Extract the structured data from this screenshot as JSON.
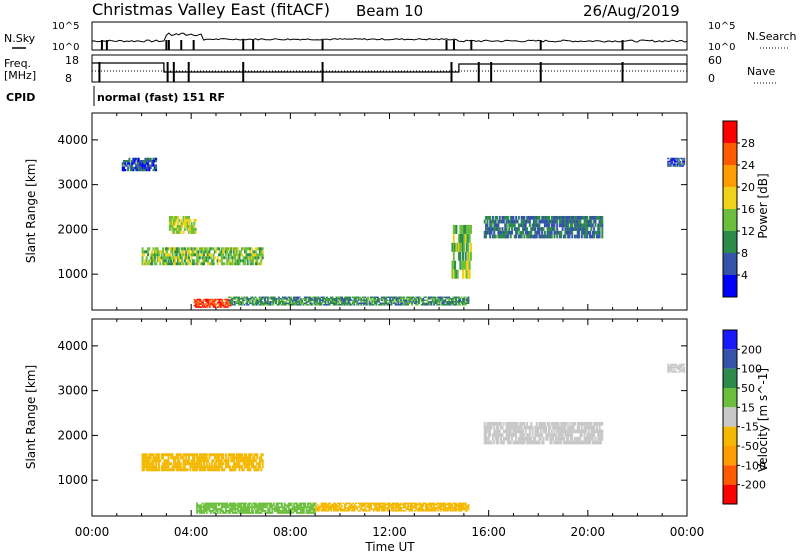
{
  "header": {
    "title": "Christmas Valley East (fitACF)",
    "beam": "Beam 10",
    "date": "26/Aug/2019"
  },
  "top_panels": {
    "nsky_label": "N.Sky",
    "nsearch_label": "N.Search",
    "freq_label_line1": "Freq.",
    "freq_label_line2": "[MHz]",
    "nave_label": "Nave",
    "cpid_label": "CPID",
    "cpid_value": "normal (fast) 151 RF",
    "noise_ticks": [
      "10^5",
      "10^0"
    ],
    "freq_ticks": [
      "18",
      "8"
    ],
    "nave_ticks": [
      "60",
      "0"
    ]
  },
  "colors": {
    "power_scale": [
      "#0000ff",
      "#3553a8",
      "#2c8a4a",
      "#6bbf3c",
      "#f0d21a",
      "#ff9c00",
      "#ff5a00",
      "#ff0000"
    ],
    "velocity_scale": [
      "#ff0000",
      "#ff5a00",
      "#ff9c00",
      "#f5b800",
      "#c8c8c8",
      "#6bbf3c",
      "#2c8a4a",
      "#3553a8",
      "#1a1aff"
    ],
    "ground_scatter": "#b4b4b4"
  },
  "chart_data": [
    {
      "type": "heatmap",
      "title": "",
      "xlabel": "",
      "ylabel": "Slant Range [km]",
      "xlim": [
        "00:00",
        "24:00"
      ],
      "ylim": [
        200,
        4600
      ],
      "yticks": [
        "1000",
        "2000",
        "3000",
        "4000"
      ],
      "colorbar": {
        "label": "Power [dB]",
        "ticks": [
          "4",
          "8",
          "12",
          "16",
          "20",
          "24",
          "28"
        ],
        "range": [
          0,
          30
        ]
      },
      "echo_regions": [
        {
          "start_hour": 3.1,
          "end_hour": 4.2,
          "range_low_km": 1900,
          "range_high_km": 2300,
          "power_db": 16
        },
        {
          "start_hour": 2.0,
          "end_hour": 6.9,
          "range_low_km": 1200,
          "range_high_km": 1600,
          "power_db": 14
        },
        {
          "start_hour": 4.1,
          "end_hour": 5.6,
          "range_low_km": 250,
          "range_high_km": 450,
          "power_db": 28
        },
        {
          "start_hour": 5.5,
          "end_hour": 15.2,
          "range_low_km": 300,
          "range_high_km": 500,
          "power_db": 10
        },
        {
          "start_hour": 14.5,
          "end_hour": 15.3,
          "range_low_km": 900,
          "range_high_km": 2100,
          "power_db": 14
        },
        {
          "start_hour": 15.8,
          "end_hour": 20.6,
          "range_low_km": 1800,
          "range_high_km": 2300,
          "power_db": 8
        },
        {
          "start_hour": 1.2,
          "end_hour": 2.6,
          "range_low_km": 3300,
          "range_high_km": 3600,
          "power_db": 6
        },
        {
          "start_hour": 23.2,
          "end_hour": 23.9,
          "range_low_km": 3400,
          "range_high_km": 3600,
          "power_db": 6
        }
      ]
    },
    {
      "type": "heatmap",
      "title": "",
      "xlabel": "Time UT",
      "ylabel": "Slant Range [km]",
      "xlim": [
        "00:00",
        "24:00"
      ],
      "ylim": [
        200,
        4600
      ],
      "xticks": [
        "00:00",
        "04:00",
        "08:00",
        "12:00",
        "16:00",
        "20:00",
        "00:00"
      ],
      "yticks": [
        "1000",
        "2000",
        "3000",
        "4000"
      ],
      "colorbar": {
        "label": "Velocity [m s^-1]",
        "ticks": [
          "-200",
          "-100",
          "-50",
          "-15",
          "15",
          "50",
          "100",
          "200"
        ],
        "range": [
          -250,
          250
        ]
      },
      "echo_regions": [
        {
          "start_hour": 2.0,
          "end_hour": 6.9,
          "range_low_km": 1200,
          "range_high_km": 1600,
          "velocity_ms": -40
        },
        {
          "start_hour": 4.2,
          "end_hour": 9.0,
          "range_low_km": 250,
          "range_high_km": 500,
          "velocity_ms": 30
        },
        {
          "start_hour": 9.0,
          "end_hour": 15.2,
          "range_low_km": 300,
          "range_high_km": 500,
          "velocity_ms": -40
        },
        {
          "start_hour": 15.8,
          "end_hour": 20.6,
          "range_low_km": 1800,
          "range_high_km": 2300,
          "velocity_ms": 0
        },
        {
          "start_hour": 23.2,
          "end_hour": 23.9,
          "range_low_km": 3400,
          "range_high_km": 3600,
          "velocity_ms": 0
        }
      ]
    }
  ]
}
